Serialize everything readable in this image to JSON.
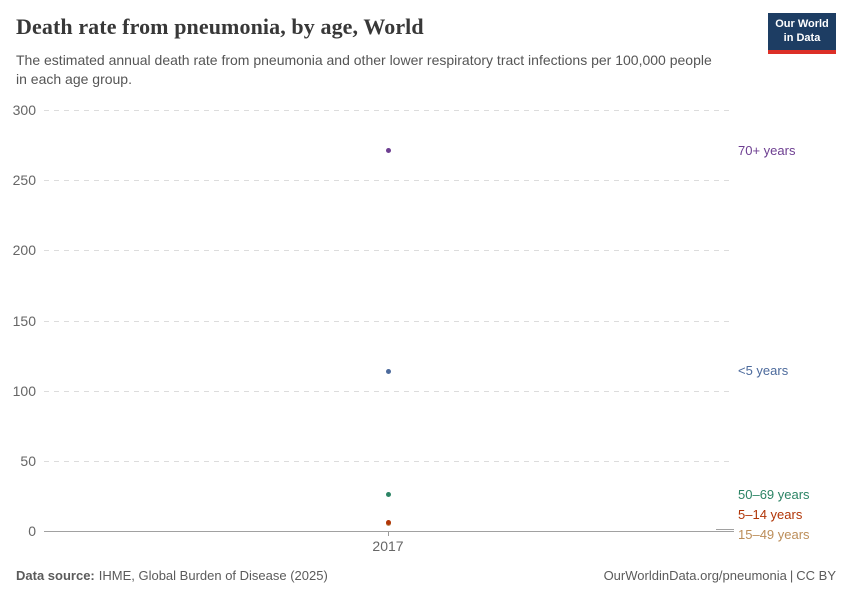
{
  "header": {
    "title": "Death rate from pneumonia, by age, World",
    "subtitle": "The estimated annual death rate from pneumonia and other lower respiratory tract infections per 100,000 people in each age group.",
    "logo": {
      "line1": "Our World",
      "line2": "in Data",
      "bg_color": "#1d3d63",
      "bar_color": "#dc2f27"
    }
  },
  "chart_data": {
    "type": "scatter",
    "title": "Death rate from pneumonia, by age, World",
    "x": [
      2017
    ],
    "x_tick_label": "2017",
    "xlabel": "",
    "ylabel": "",
    "ylim": [
      0,
      300
    ],
    "yticks": [
      0,
      50,
      100,
      150,
      200,
      250,
      300
    ],
    "grid": "dashed-horizontal",
    "legend_position": "right-entity-labels",
    "series": [
      {
        "name": "70+ years",
        "values": [
          271
        ],
        "color": "#6d3e91"
      },
      {
        "name": "<5 years",
        "values": [
          114
        ],
        "color": "#4c6a9c"
      },
      {
        "name": "50–69 years",
        "values": [
          26
        ],
        "color": "#2c8465"
      },
      {
        "name": "5–14 years",
        "values": [
          5.9
        ],
        "color": "#b13507"
      },
      {
        "name": "15–49 years",
        "values": [
          5.3
        ],
        "color": "#bc8e5a",
        "leader_line": true
      }
    ]
  },
  "footer": {
    "data_source_label": "Data source:",
    "data_source": "IHME, Global Burden of Disease (2025)",
    "link": "OurWorldinData.org/pneumonia",
    "separator": "|",
    "license": "CC BY"
  }
}
